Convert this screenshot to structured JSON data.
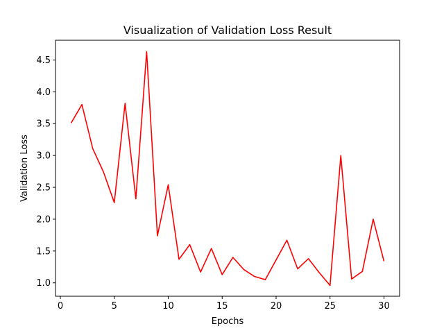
{
  "chart_data": {
    "type": "line",
    "title": "Visualization of Validation Loss Result",
    "xlabel": "Epochs",
    "ylabel": "Validation Loss",
    "xlim": [
      -0.45,
      31.45
    ],
    "ylim": [
      0.79,
      4.81
    ],
    "x_ticks": [
      0,
      5,
      10,
      15,
      20,
      25,
      30
    ],
    "y_ticks": [
      1.0,
      1.5,
      2.0,
      2.5,
      3.0,
      3.5,
      4.0,
      4.5
    ],
    "grid": false,
    "series": [
      {
        "color": "#ff0000",
        "x": [
          1,
          2,
          3,
          4,
          5,
          6,
          7,
          8,
          9,
          10,
          11,
          12,
          13,
          14,
          15,
          16,
          17,
          18,
          19,
          20,
          21,
          22,
          23,
          24,
          25,
          26,
          27,
          28,
          29,
          30
        ],
        "y": [
          3.51,
          3.8,
          3.11,
          2.74,
          2.26,
          3.82,
          2.32,
          4.63,
          1.74,
          2.54,
          1.37,
          1.6,
          1.17,
          1.54,
          1.13,
          1.4,
          1.21,
          1.1,
          1.05,
          1.36,
          1.67,
          1.22,
          1.38,
          1.16,
          0.96,
          3.0,
          1.06,
          1.18,
          2.0,
          1.34
        ]
      }
    ]
  }
}
